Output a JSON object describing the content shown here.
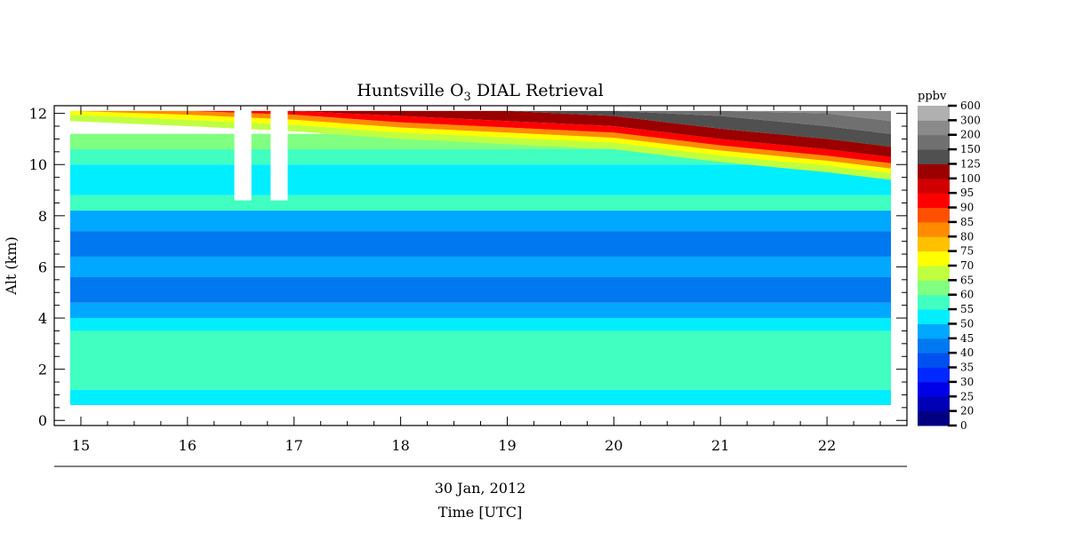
{
  "chart_data": {
    "type": "heatmap",
    "title_main": "Huntsville O",
    "title_sub": "3",
    "title_rest": " DIAL Retrieval",
    "xlabel": "Time [UTC]",
    "date_label": "30 Jan, 2012",
    "ylabel": "Alt (km)",
    "xlim": [
      14.75,
      22.75
    ],
    "ylim": [
      -0.2,
      12.3
    ],
    "x_ticks": [
      "15",
      "16",
      "17",
      "18",
      "19",
      "20",
      "21",
      "22"
    ],
    "y_ticks": [
      "0",
      "2",
      "4",
      "6",
      "8",
      "10",
      "12"
    ],
    "data_extent": {
      "x": [
        14.9,
        22.6
      ],
      "y": [
        0.6,
        12.1
      ]
    },
    "gaps": [
      {
        "x": [
          16.44,
          16.6
        ],
        "y": [
          8.6,
          12.3
        ]
      },
      {
        "x": [
          16.78,
          16.94
        ],
        "y": [
          8.6,
          12.3
        ]
      }
    ],
    "colorbar": {
      "unit": "ppbv",
      "levels": [
        "0",
        "20",
        "25",
        "30",
        "35",
        "40",
        "45",
        "50",
        "55",
        "60",
        "65",
        "70",
        "75",
        "80",
        "85",
        "90",
        "95",
        "100",
        "125",
        "150",
        "200",
        "300",
        "600"
      ],
      "colors": [
        "#000080",
        "#0000b4",
        "#0000e6",
        "#0028ff",
        "#0050f0",
        "#0078f0",
        "#00a8ff",
        "#00eeff",
        "#40ffc0",
        "#80ff80",
        "#c0ff40",
        "#ffff00",
        "#ffc000",
        "#ff8c00",
        "#ff5000",
        "#ff0000",
        "#d00000",
        "#9a0000",
        "#505050",
        "#707070",
        "#8a8a8a",
        "#b0b0b0",
        "#d8d8d8"
      ]
    },
    "layers": [
      {
        "y": [
          0.6,
          1.2
        ],
        "level": "50"
      },
      {
        "y": [
          1.2,
          2.3
        ],
        "level": "55"
      },
      {
        "y": [
          2.3,
          3.5
        ],
        "level": "55"
      },
      {
        "y": [
          3.5,
          4.0
        ],
        "level": "50"
      },
      {
        "y": [
          4.0,
          4.6
        ],
        "level": "45"
      },
      {
        "y": [
          4.6,
          5.6
        ],
        "level": "40"
      },
      {
        "y": [
          5.6,
          6.4
        ],
        "level": "45"
      },
      {
        "y": [
          6.4,
          7.4
        ],
        "level": "40"
      },
      {
        "y": [
          7.4,
          8.2
        ],
        "level": "45"
      },
      {
        "y": [
          8.2,
          8.8
        ],
        "level": "55"
      },
      {
        "y": [
          8.8,
          10.0
        ],
        "level": "50"
      },
      {
        "y": [
          10.0,
          10.6
        ],
        "level": "55"
      },
      {
        "y": [
          10.6,
          11.2
        ],
        "level": "60"
      }
    ],
    "tropopause": {
      "x": [
        14.9,
        16.0,
        17.0,
        18.0,
        19.0,
        20.0,
        21.0,
        22.0,
        22.6
      ],
      "y": [
        11.9,
        11.7,
        11.5,
        11.2,
        11.0,
        10.8,
        10.3,
        9.9,
        9.6
      ]
    }
  }
}
